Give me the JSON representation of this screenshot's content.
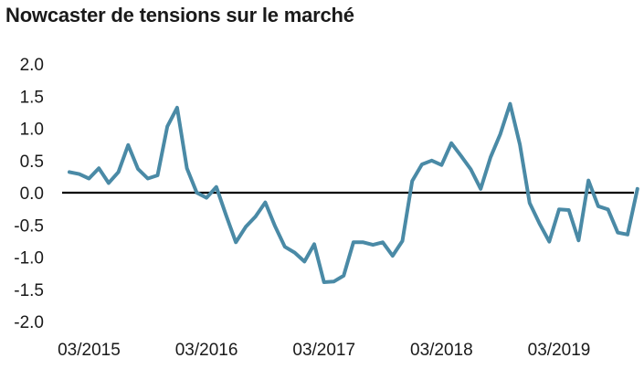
{
  "chart_data": {
    "type": "line",
    "title": "Nowcaster de tensions sur le marché",
    "xlabel": "",
    "ylabel": "",
    "ylim": [
      -2.0,
      2.0
    ],
    "yticks": [
      "2.0",
      "1.5",
      "1.0",
      "0.5",
      "0.0",
      "-0.5",
      "-1.0",
      "-1.5",
      "-2.0"
    ],
    "xticks": [
      "03/2015",
      "03/2016",
      "03/2017",
      "03/2018",
      "03/2019"
    ],
    "grid": false,
    "zero_line": true,
    "line_color": "#4a8aa6",
    "series": [
      {
        "x": [
          "01/2015",
          "02/2015",
          "03/2015",
          "04/2015",
          "05/2015",
          "06/2015",
          "07/2015",
          "08/2015",
          "09/2015",
          "10/2015",
          "11/2015",
          "12/2015",
          "01/2016",
          "02/2016",
          "03/2016",
          "04/2016",
          "05/2016",
          "06/2016",
          "07/2016",
          "08/2016",
          "09/2016",
          "10/2016",
          "11/2016",
          "12/2016",
          "01/2017",
          "02/2017",
          "03/2017",
          "04/2017",
          "05/2017",
          "06/2017",
          "07/2017",
          "08/2017",
          "09/2017",
          "10/2017",
          "11/2017",
          "12/2017",
          "01/2018",
          "02/2018",
          "03/2018",
          "04/2018",
          "05/2018",
          "06/2018",
          "07/2018",
          "08/2018",
          "09/2018",
          "10/2018",
          "11/2018",
          "12/2018",
          "01/2019",
          "02/2019",
          "03/2019",
          "04/2019",
          "05/2019",
          "06/2019",
          "07/2019",
          "08/2019",
          "09/2019",
          "10/2019",
          "11/2019"
        ],
        "values": [
          0.32,
          0.29,
          0.22,
          0.38,
          0.15,
          0.32,
          0.74,
          0.37,
          0.22,
          0.27,
          1.03,
          1.32,
          0.38,
          0.0,
          -0.08,
          0.09,
          -0.35,
          -0.77,
          -0.53,
          -0.37,
          -0.15,
          -0.52,
          -0.84,
          -0.93,
          -1.07,
          -0.8,
          -1.39,
          -1.38,
          -1.29,
          -0.77,
          -0.77,
          -0.81,
          -0.77,
          -0.98,
          -0.75,
          0.18,
          0.44,
          0.5,
          0.43,
          0.77,
          0.57,
          0.36,
          0.06,
          0.55,
          0.91,
          1.38,
          0.75,
          -0.16,
          -0.48,
          -0.76,
          -0.26,
          -0.27,
          -0.74,
          0.19,
          -0.21,
          -0.26,
          -0.62,
          -0.65,
          0.06
        ]
      }
    ]
  }
}
